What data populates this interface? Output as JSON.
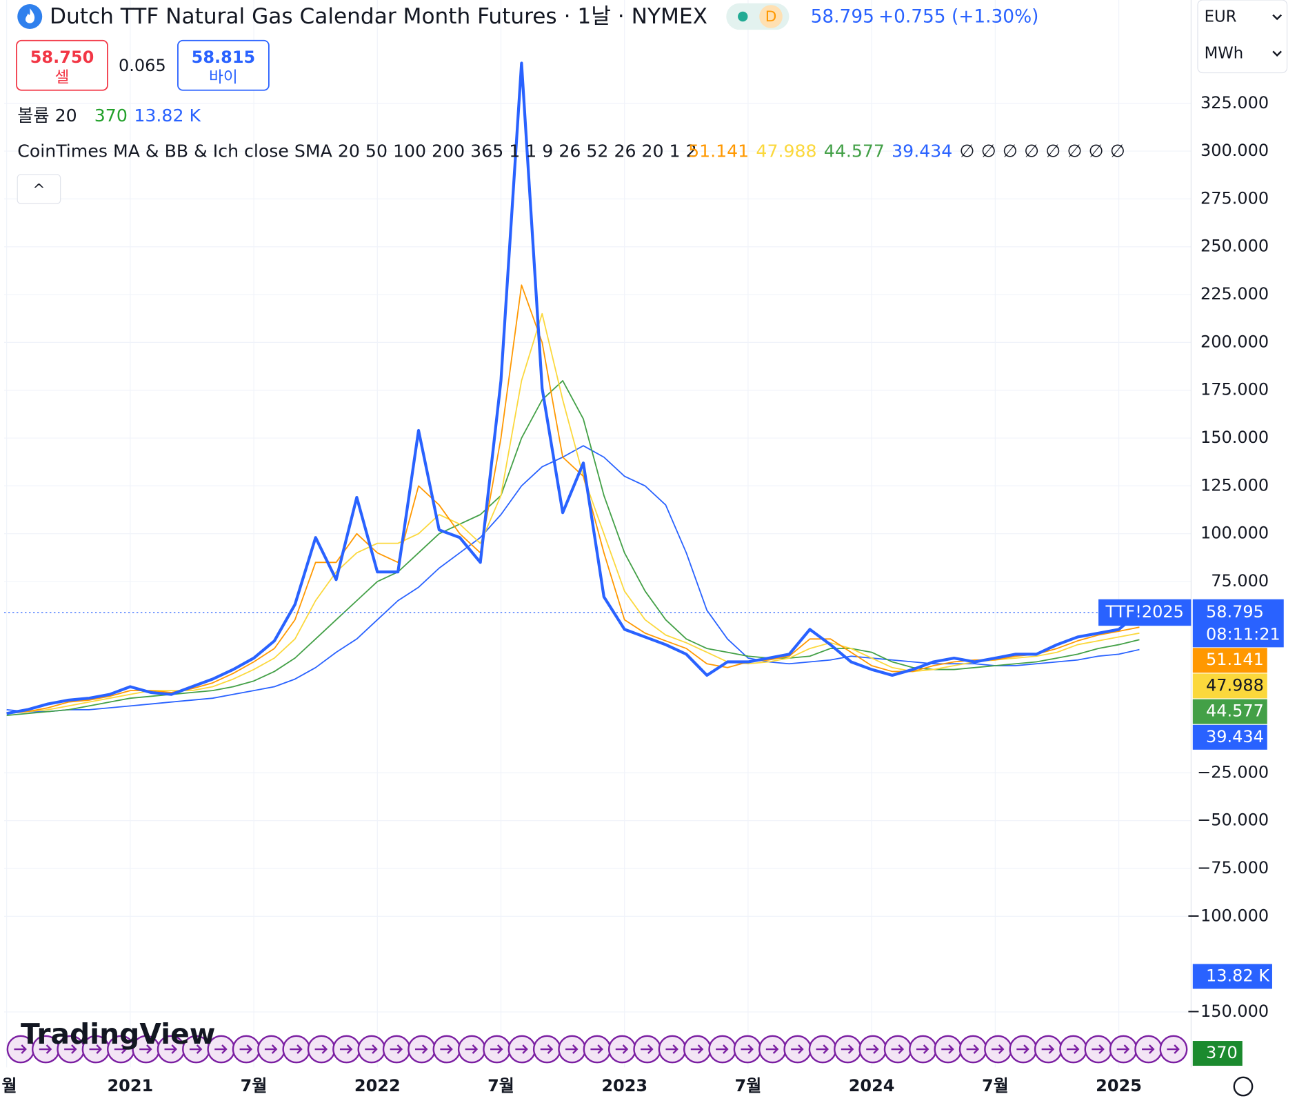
{
  "header": {
    "title": "Dutch TTF Natural Gas Calendar Month Futures · 1날 · NYMEX",
    "interval_badge": "D",
    "change": "+0.755 (+1.30%)",
    "sell_price": "58.750",
    "sell_label": "셀",
    "spread": "0.065",
    "buy_price": "58.815",
    "buy_label": "바이",
    "volume_label": "볼륨 20",
    "volume_value": "370",
    "volume_ma": "13.82 K",
    "indicator": "CoinTimes MA & BB & Ich close SMA 20 50 100 200 365 1 1 9 26 52 26 20 1 2",
    "empty_values": [
      "∅",
      "∅",
      "∅",
      "∅",
      "∅",
      "∅",
      "∅",
      "∅"
    ],
    "currency": "EUR",
    "unit": "MWh",
    "logo": "TradingView",
    "countdown": "08:11:21",
    "collapse_button": "^"
  },
  "chart_data": {
    "type": "line",
    "categories": [
      "월",
      null,
      null,
      null,
      null,
      null,
      "2021",
      null,
      null,
      null,
      null,
      null,
      "7월",
      null,
      null,
      null,
      null,
      null,
      "2022",
      null,
      null,
      null,
      null,
      null,
      "7월",
      null,
      null,
      null,
      null,
      null,
      "2023",
      null,
      null,
      null,
      null,
      null,
      "7월",
      null,
      null,
      null,
      null,
      null,
      "2024",
      null,
      null,
      null,
      null,
      null,
      "7월",
      null,
      null,
      null,
      null,
      null,
      "2025",
      null
    ],
    "series": [
      {
        "name": "TTF!2025",
        "color": "#2962ff",
        "values": [
          6,
          8,
          11,
          13,
          14,
          16,
          20,
          17,
          16,
          20,
          24,
          29,
          35,
          44,
          63,
          98,
          76,
          119,
          80,
          80,
          154,
          102,
          98,
          85,
          180,
          346,
          176,
          111,
          137,
          67,
          50,
          46,
          42,
          37,
          26,
          33,
          33,
          35,
          37,
          50,
          42,
          33,
          29,
          26,
          29,
          33,
          35,
          33,
          35,
          37,
          37,
          42,
          46,
          48,
          50,
          58.795
        ]
      },
      {
        "color": "#ff9800",
        "values": [
          6,
          7,
          9,
          12,
          13,
          15,
          18,
          18,
          17,
          19,
          22,
          27,
          33,
          40,
          55,
          85,
          85,
          100,
          90,
          85,
          125,
          115,
          100,
          90,
          150,
          230,
          200,
          140,
          130,
          90,
          55,
          48,
          44,
          40,
          32,
          30,
          33,
          34,
          36,
          45,
          45,
          38,
          31,
          28,
          28,
          31,
          33,
          34,
          34,
          36,
          37,
          40,
          44,
          47,
          49,
          51.141
        ]
      },
      {
        "color": "#fbd83c",
        "values": [
          6,
          7,
          8,
          10,
          12,
          14,
          16,
          18,
          18,
          18,
          20,
          24,
          29,
          35,
          45,
          65,
          80,
          90,
          95,
          95,
          100,
          110,
          105,
          95,
          120,
          180,
          215,
          170,
          130,
          100,
          70,
          55,
          47,
          43,
          38,
          33,
          32,
          33,
          35,
          40,
          43,
          40,
          35,
          30,
          28,
          29,
          31,
          33,
          34,
          35,
          36,
          38,
          42,
          44,
          46,
          47.988
        ]
      },
      {
        "color": "#43a047",
        "values": [
          5,
          6,
          7,
          8,
          10,
          12,
          14,
          15,
          16,
          17,
          18,
          20,
          23,
          28,
          35,
          45,
          55,
          65,
          75,
          80,
          90,
          100,
          105,
          110,
          120,
          150,
          170,
          180,
          160,
          120,
          90,
          70,
          55,
          45,
          40,
          38,
          36,
          35,
          35,
          36,
          40,
          40,
          38,
          33,
          30,
          29,
          29,
          30,
          31,
          32,
          33,
          35,
          37,
          40,
          42,
          44.577
        ]
      },
      {
        "color": "#2962ff",
        "values": [
          8,
          7,
          7,
          8,
          8,
          9,
          10,
          11,
          12,
          13,
          14,
          16,
          18,
          20,
          24,
          30,
          38,
          45,
          55,
          65,
          72,
          82,
          90,
          98,
          110,
          125,
          135,
          140,
          146,
          140,
          130,
          125,
          115,
          90,
          60,
          45,
          35,
          33,
          32,
          33,
          34,
          36,
          35,
          34,
          33,
          32,
          32,
          32,
          31,
          31,
          32,
          33,
          34,
          36,
          37,
          39.434
        ]
      }
    ],
    "ylim": [
      -179,
      379
    ],
    "yticks": [
      {
        "value": 325,
        "label": "325.000"
      },
      {
        "value": 300,
        "label": "300.000"
      },
      {
        "value": 275,
        "label": "275.000"
      },
      {
        "value": 250,
        "label": "250.000"
      },
      {
        "value": 225,
        "label": "225.000"
      },
      {
        "value": 200,
        "label": "200.000"
      },
      {
        "value": 175,
        "label": "175.000"
      },
      {
        "value": 150,
        "label": "150.000"
      },
      {
        "value": 125,
        "label": "125.000"
      },
      {
        "value": 100,
        "label": "100.000"
      },
      {
        "value": 75,
        "label": "75.000"
      },
      {
        "value": -25,
        "label": "−25.000"
      },
      {
        "value": -50,
        "label": "−50.000"
      },
      {
        "value": -75,
        "label": "−75.000"
      },
      {
        "value": -100,
        "label": "−100.000"
      },
      {
        "value": -150,
        "label": "−150.000"
      }
    ],
    "grid": true
  }
}
